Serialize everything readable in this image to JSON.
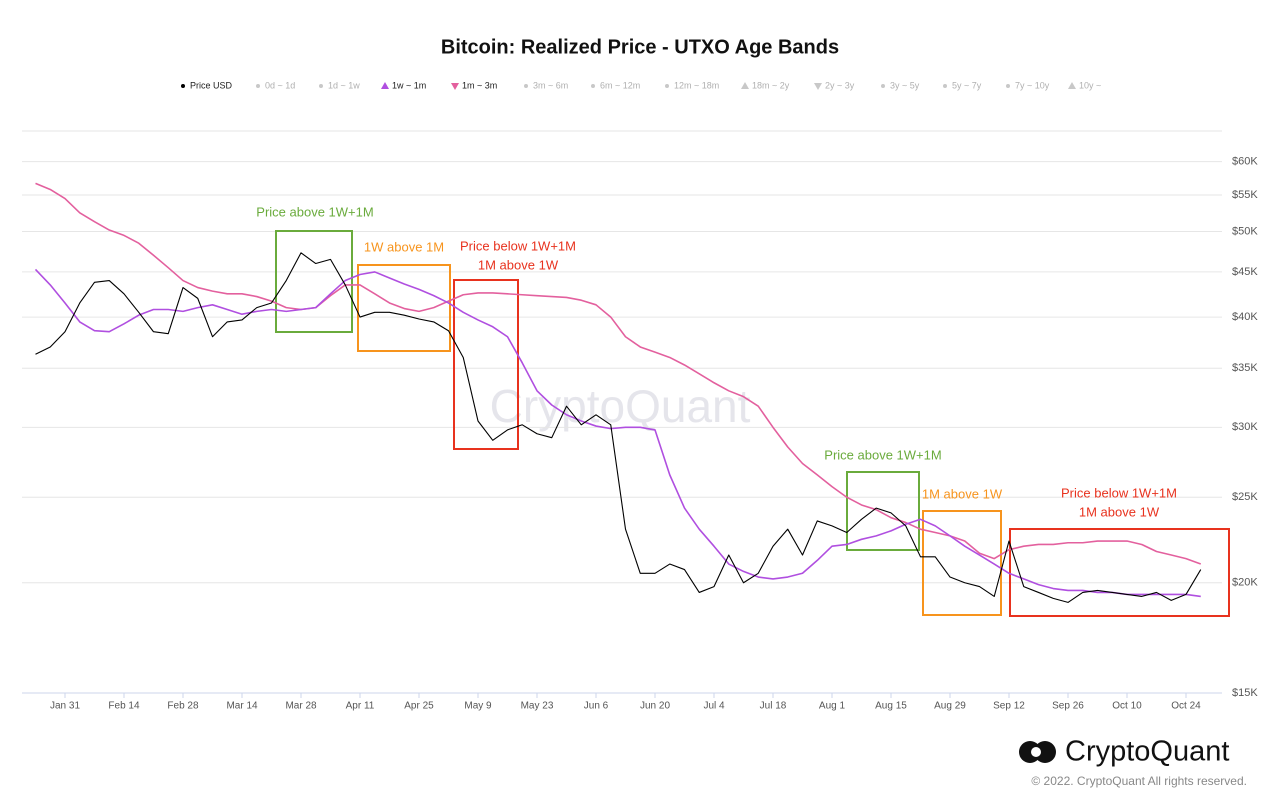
{
  "chart_data": {
    "type": "line",
    "title": "Bitcoin: Realized Price - UTXO Age Bands",
    "log_scale": true,
    "grid": true,
    "legend": "top",
    "ylim": [
      15000,
      65000
    ],
    "yticks": [
      {
        "value": 15000,
        "label": "$15K"
      },
      {
        "value": 20000,
        "label": "$20K"
      },
      {
        "value": 25000,
        "label": "$25K"
      },
      {
        "value": 30000,
        "label": "$30K"
      },
      {
        "value": 35000,
        "label": "$35K"
      },
      {
        "value": 40000,
        "label": "$40K"
      },
      {
        "value": 45000,
        "label": "$45K"
      },
      {
        "value": 50000,
        "label": "$50K"
      },
      {
        "value": 55000,
        "label": "$55K"
      },
      {
        "value": 60000,
        "label": "$60K"
      }
    ],
    "categories": [
      null,
      null,
      "Jan 31",
      null,
      null,
      null,
      "Feb 14",
      null,
      null,
      null,
      "Feb 28",
      null,
      null,
      null,
      "Mar 14",
      null,
      null,
      null,
      "Mar 28",
      null,
      null,
      null,
      "Apr 11",
      null,
      null,
      null,
      "Apr 25",
      null,
      null,
      null,
      "May 9",
      null,
      null,
      null,
      "May 23",
      null,
      null,
      null,
      "Jun 6",
      null,
      null,
      null,
      "Jun 20",
      null,
      null,
      null,
      "Jul 4",
      null,
      null,
      null,
      "Jul 18",
      null,
      null,
      null,
      "Aug 1",
      null,
      null,
      null,
      "Aug 15",
      null,
      null,
      null,
      "Aug 29",
      null,
      null,
      null,
      "Sep 12",
      null,
      null,
      null,
      "Sep 26",
      null,
      null,
      null,
      "Oct 10",
      null,
      null,
      null,
      "Oct 24",
      null
    ],
    "series": [
      {
        "name": "Price USD",
        "color": "#000000",
        "marker": "dot",
        "values": [
          36300,
          37000,
          38500,
          41500,
          43800,
          44000,
          42500,
          40500,
          38500,
          38300,
          43200,
          42000,
          38000,
          39500,
          39700,
          41000,
          41500,
          44000,
          47300,
          46000,
          46500,
          43500,
          40000,
          40500,
          40500,
          40200,
          39800,
          39500,
          38600,
          36000,
          30500,
          29000,
          29800,
          30200,
          29500,
          29200,
          31700,
          30200,
          31000,
          30200,
          23000,
          20500,
          20500,
          21000,
          20700,
          19500,
          19800,
          21500,
          20000,
          20500,
          22000,
          23000,
          21500,
          23500,
          23200,
          22800,
          23600,
          24300,
          24000,
          23200,
          21400,
          21400,
          20300,
          20000,
          19800,
          19300,
          22300,
          19800,
          19500,
          19200,
          19000,
          19500,
          19600,
          19500,
          19400,
          19300,
          19500,
          19100,
          19400,
          20700
        ]
      },
      {
        "name": "0d ~ 1d",
        "color": "#c8c8c8",
        "marker": "dot",
        "hidden": true
      },
      {
        "name": "1d ~ 1w",
        "color": "#c8c8c8",
        "marker": "dot",
        "hidden": true
      },
      {
        "name": "1w ~ 1m",
        "color": "#b04fe0",
        "marker": "triangle-up",
        "values": [
          45300,
          43500,
          41500,
          39500,
          38600,
          38500,
          39300,
          40200,
          40800,
          40800,
          40600,
          41000,
          41300,
          40800,
          40300,
          40600,
          40800,
          40600,
          40800,
          41000,
          42500,
          44000,
          44700,
          45000,
          44300,
          43600,
          43000,
          42300,
          41500,
          40500,
          39700,
          39000,
          38000,
          35500,
          33000,
          31800,
          31000,
          30500,
          30100,
          29900,
          30000,
          30000,
          29800,
          26500,
          24300,
          23000,
          22000,
          21000,
          20600,
          20300,
          20200,
          20300,
          20500,
          21200,
          22000,
          22100,
          22400,
          22600,
          22900,
          23300,
          23600,
          23200,
          22600,
          22000,
          21500,
          21000,
          20500,
          20200,
          19900,
          19700,
          19600,
          19600,
          19500,
          19500,
          19400,
          19400,
          19400,
          19400,
          19400,
          19300
        ]
      },
      {
        "name": "1m ~ 3m",
        "color": "#e3609e",
        "marker": "triangle-down",
        "values": [
          56700,
          55800,
          54500,
          52500,
          51300,
          50200,
          49500,
          48500,
          47000,
          45500,
          44000,
          43200,
          42800,
          42500,
          42500,
          42200,
          41700,
          41000,
          40800,
          41000,
          42300,
          43500,
          43500,
          42500,
          41500,
          40900,
          40600,
          41000,
          41700,
          42400,
          42600,
          42600,
          42500,
          42400,
          42300,
          42200,
          42100,
          41800,
          41300,
          40000,
          38000,
          37000,
          36500,
          36000,
          35300,
          34500,
          33700,
          33000,
          32500,
          31700,
          30000,
          28500,
          27300,
          26500,
          25700,
          25000,
          24500,
          24200,
          23700,
          23400,
          23000,
          22800,
          22600,
          22300,
          21600,
          21300,
          21800,
          22000,
          22100,
          22100,
          22200,
          22200,
          22300,
          22300,
          22300,
          22100,
          21700,
          21500,
          21300,
          21000
        ]
      },
      {
        "name": "3m ~ 6m",
        "color": "#c8c8c8",
        "marker": "dot",
        "hidden": true
      },
      {
        "name": "6m ~ 12m",
        "color": "#c8c8c8",
        "marker": "dot",
        "hidden": true
      },
      {
        "name": "12m ~ 18m",
        "color": "#c8c8c8",
        "marker": "dot",
        "hidden": true
      },
      {
        "name": "18m ~ 2y",
        "color": "#c8c8c8",
        "marker": "triangle-up",
        "hidden": true
      },
      {
        "name": "2y ~ 3y",
        "color": "#c8c8c8",
        "marker": "triangle-down",
        "hidden": true
      },
      {
        "name": "3y ~ 5y",
        "color": "#c8c8c8",
        "marker": "dot",
        "hidden": true
      },
      {
        "name": "5y ~ 7y",
        "color": "#c8c8c8",
        "marker": "dot",
        "hidden": true
      },
      {
        "name": "7y ~ 10y",
        "color": "#c8c8c8",
        "marker": "dot",
        "hidden": true
      },
      {
        "name": "10y ~",
        "color": "#c8c8c8",
        "marker": "triangle-up",
        "hidden": true
      }
    ],
    "annotations": [
      {
        "lines": [
          "Price above 1W+1M"
        ],
        "color": "#6aab3c"
      },
      {
        "lines": [
          "1W above 1M"
        ],
        "color": "#f7941d"
      },
      {
        "lines": [
          "Price below 1W+1M",
          "1M above 1W"
        ],
        "color": "#e8321e"
      },
      {
        "lines": [
          "Price above 1W+1M"
        ],
        "color": "#6aab3c"
      },
      {
        "lines": [
          "1M above 1W"
        ],
        "color": "#f7941d"
      },
      {
        "lines": [
          "Price below 1W+1M",
          "1M above 1W"
        ],
        "color": "#e8321e"
      }
    ],
    "watermark": "CryptoQuant",
    "brand": "CryptoQuant",
    "copyright": "© 2022. CryptoQuant All rights reserved."
  }
}
